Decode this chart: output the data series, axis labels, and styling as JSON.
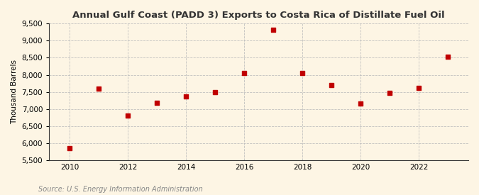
{
  "title": "Annual Gulf Coast (PADD 3) Exports to Costa Rica of Distillate Fuel Oil",
  "ylabel": "Thousand Barrels",
  "source": "Source: U.S. Energy Information Administration",
  "years": [
    2010,
    2011,
    2012,
    2013,
    2014,
    2015,
    2016,
    2017,
    2018,
    2019,
    2020,
    2021,
    2022,
    2023
  ],
  "values": [
    5850,
    7600,
    6800,
    7175,
    7375,
    7490,
    8060,
    9310,
    8060,
    7700,
    7150,
    7480,
    7620,
    8540
  ],
  "ylim": [
    5500,
    9500
  ],
  "yticks": [
    5500,
    6000,
    6500,
    7000,
    7500,
    8000,
    8500,
    9000,
    9500
  ],
  "xticks": [
    2010,
    2012,
    2014,
    2016,
    2018,
    2020,
    2022
  ],
  "marker_color": "#c00000",
  "marker_size": 4,
  "bg_color": "#fdf5e4",
  "grid_color": "#bbbbbb",
  "spine_color": "#333333",
  "title_fontsize": 9.5,
  "label_fontsize": 7.5,
  "tick_fontsize": 7.5,
  "source_fontsize": 7,
  "source_color": "#888888"
}
